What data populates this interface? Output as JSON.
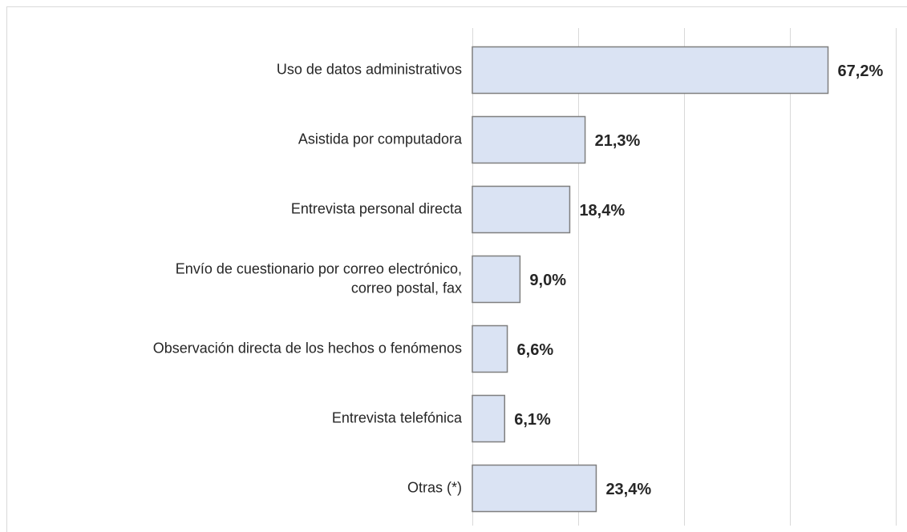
{
  "chart_data": {
    "type": "barh",
    "categories": [
      "Uso de datos administrativos",
      "Asistida por computadora",
      "Entrevista personal directa",
      "Envío de cuestionario por correo electrónico,\ncorreo postal, fax",
      "Observación directa de los hechos o fenómenos",
      "Entrevista telefónica",
      "Otras (*)"
    ],
    "values": [
      67.2,
      21.3,
      18.4,
      9.0,
      6.6,
      6.1,
      23.4
    ],
    "value_labels": [
      "67,2%",
      "21,3%",
      "18,4%",
      "9,0%",
      "6,6%",
      "6,1%",
      "23,4%"
    ],
    "color": "#dae3f3",
    "xlim": [
      0,
      80
    ],
    "xticks": [
      0,
      20,
      40,
      60,
      80
    ],
    "grid": true
  }
}
